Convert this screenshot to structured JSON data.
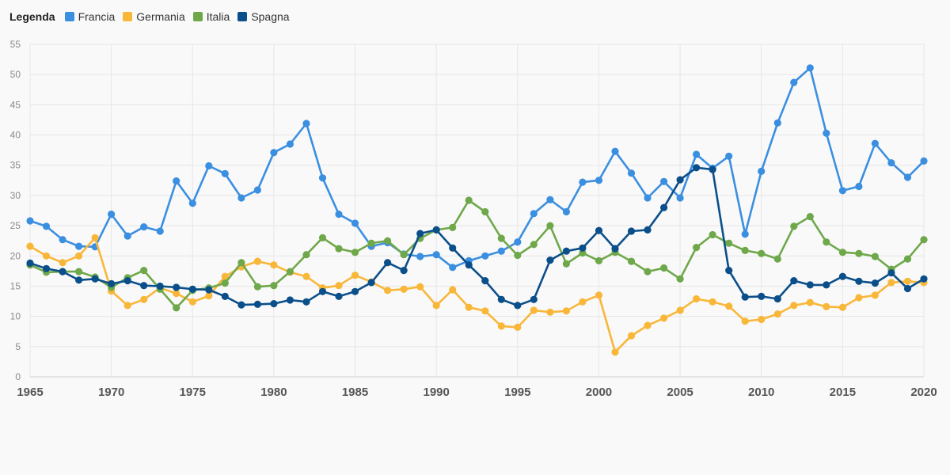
{
  "legend": {
    "title": "Legenda"
  },
  "chart_data": {
    "type": "line",
    "title": "",
    "xlabel": "",
    "ylabel": "",
    "xlim": [
      1965,
      2020
    ],
    "ylim": [
      0,
      55
    ],
    "y_ticks": [
      0,
      5,
      10,
      15,
      20,
      25,
      30,
      35,
      40,
      45,
      50,
      55
    ],
    "x_ticks": [
      1965,
      1970,
      1975,
      1980,
      1985,
      1990,
      1995,
      2000,
      2005,
      2010,
      2015,
      2020
    ],
    "grid": true,
    "legend_position": "top-left",
    "x": [
      1965,
      1966,
      1967,
      1968,
      1969,
      1970,
      1971,
      1972,
      1973,
      1974,
      1975,
      1976,
      1977,
      1978,
      1979,
      1980,
      1981,
      1982,
      1983,
      1984,
      1985,
      1986,
      1987,
      1988,
      1989,
      1990,
      1991,
      1992,
      1993,
      1994,
      1995,
      1996,
      1997,
      1998,
      1999,
      2000,
      2001,
      2002,
      2003,
      2004,
      2005,
      2006,
      2007,
      2008,
      2009,
      2010,
      2011,
      2012,
      2013,
      2014,
      2015,
      2016,
      2017,
      2018,
      2019,
      2020
    ],
    "series": [
      {
        "name": "Francia",
        "color": "#3b8fe0",
        "values": [
          25.8,
          24.9,
          22.7,
          21.6,
          21.5,
          26.9,
          23.3,
          24.8,
          24.1,
          32.4,
          28.7,
          34.9,
          33.6,
          29.6,
          30.9,
          37.1,
          38.5,
          41.9,
          32.9,
          26.9,
          25.4,
          21.6,
          22.2,
          20.3,
          19.9,
          20.2,
          18.1,
          19.2,
          20.0,
          20.8,
          22.3,
          27.0,
          29.3,
          27.3,
          32.2,
          32.5,
          37.3,
          33.7,
          29.6,
          32.3,
          29.6,
          36.8,
          34.5,
          36.5,
          23.6,
          34.0,
          42.0,
          48.7,
          51.1,
          40.3,
          30.8,
          31.5,
          38.6,
          35.4,
          33.0,
          35.7
        ]
      },
      {
        "name": "Germania",
        "color": "#f9b73a",
        "values": [
          21.6,
          20.0,
          18.9,
          20.0,
          23.0,
          14.2,
          11.8,
          12.8,
          14.7,
          13.8,
          12.4,
          13.4,
          16.6,
          18.2,
          19.1,
          18.5,
          17.3,
          16.6,
          14.7,
          15.1,
          16.8,
          15.7,
          14.3,
          14.5,
          14.9,
          11.8,
          14.4,
          11.5,
          10.9,
          8.4,
          8.2,
          11.0,
          10.7,
          10.9,
          12.4,
          13.5,
          4.1,
          6.8,
          8.5,
          9.7,
          11.0,
          12.9,
          12.4,
          11.7,
          9.2,
          9.5,
          10.4,
          11.8,
          12.3,
          11.6,
          11.5,
          13.1,
          13.5,
          15.6,
          15.8,
          15.6
        ]
      },
      {
        "name": "Italia",
        "color": "#6fa84a",
        "values": [
          18.5,
          17.3,
          17.4,
          17.4,
          16.5,
          14.8,
          16.4,
          17.6,
          14.5,
          11.4,
          14.3,
          14.7,
          15.5,
          18.9,
          14.9,
          15.1,
          17.4,
          20.2,
          23.0,
          21.2,
          20.6,
          22.1,
          22.5,
          20.2,
          22.9,
          24.3,
          24.7,
          29.2,
          27.3,
          22.9,
          20.1,
          21.9,
          25.0,
          18.7,
          20.5,
          19.2,
          20.6,
          19.1,
          17.4,
          18.0,
          16.2,
          21.4,
          23.5,
          22.1,
          20.9,
          20.4,
          19.5,
          24.9,
          26.5,
          22.3,
          20.6,
          20.4,
          19.9,
          17.8,
          19.5,
          22.7
        ]
      },
      {
        "name": "Spagna",
        "color": "#0b4f8a",
        "values": [
          18.8,
          17.9,
          17.4,
          16.0,
          16.2,
          15.4,
          15.9,
          15.1,
          15.0,
          14.8,
          14.5,
          14.4,
          13.3,
          11.9,
          12.0,
          12.1,
          12.7,
          12.4,
          14.1,
          13.3,
          14.1,
          15.6,
          18.9,
          17.6,
          23.7,
          24.3,
          21.3,
          18.5,
          15.9,
          12.8,
          11.8,
          12.8,
          19.3,
          20.8,
          21.3,
          24.2,
          21.2,
          24.1,
          24.3,
          28.0,
          32.6,
          34.6,
          34.3,
          17.6,
          13.2,
          13.3,
          12.9,
          15.9,
          15.2,
          15.2,
          16.6,
          15.8,
          15.5,
          17.2,
          14.6,
          16.2
        ]
      }
    ]
  }
}
